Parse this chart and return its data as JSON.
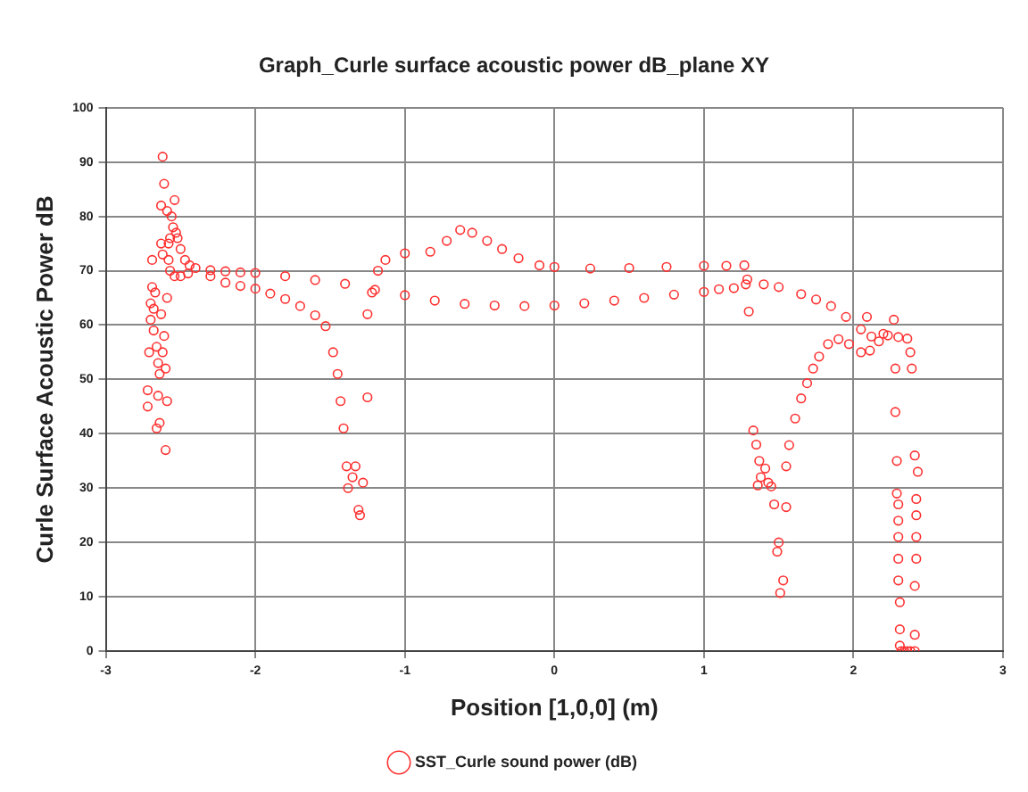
{
  "chart_data": {
    "type": "scatter",
    "title": "Graph_Curle surface acoustic power dB_plane XY",
    "xlabel": "Position [1,0,0] (m)",
    "ylabel": "Curle Surface Acoustic Power dB",
    "xlim": [
      -3,
      3
    ],
    "xticks": [
      -3,
      -2,
      -1,
      0,
      1,
      2,
      3
    ],
    "ylim": [
      0,
      100
    ],
    "yticks": [
      0,
      10,
      20,
      30,
      40,
      50,
      60,
      70,
      80,
      90,
      100
    ],
    "grid": true,
    "legend": "bottom",
    "marker": "circle",
    "series": [
      {
        "name": "SST_Curle sound power (dB)",
        "color": "#ff3030",
        "x": [
          -2.72,
          -2.72,
          -2.71,
          -2.7,
          -2.7,
          -2.69,
          -2.69,
          -2.68,
          -2.68,
          -2.67,
          -2.66,
          -2.66,
          -2.65,
          -2.65,
          -2.64,
          -2.64,
          -2.63,
          -2.63,
          -2.63,
          -2.62,
          -2.62,
          -2.62,
          -2.61,
          -2.61,
          -2.6,
          -2.6,
          -2.59,
          -2.59,
          -2.59,
          -2.58,
          -2.58,
          -2.57,
          -2.56,
          -2.55,
          -2.54,
          -2.53,
          -2.52,
          -2.5,
          -2.47,
          -2.44,
          -2.4,
          -2.57,
          -2.54,
          -2.5,
          -2.45,
          -2.3,
          -2.2,
          -2.1,
          -2.0,
          -1.8,
          -1.6,
          -1.4,
          -1.2,
          -1.0,
          -0.8,
          -0.6,
          -0.4,
          -0.2,
          0.0,
          0.2,
          0.4,
          0.6,
          0.8,
          1.0,
          1.1,
          1.2,
          1.29,
          1.4,
          1.5,
          1.65,
          1.75,
          1.85,
          1.95,
          2.05,
          2.12,
          2.2,
          2.3,
          2.36,
          -2.3,
          -2.2,
          -2.1,
          -2.0,
          -1.9,
          -1.8,
          -1.7,
          -1.6,
          -1.53,
          -1.48,
          -1.45,
          -1.43,
          -1.41,
          -1.39,
          -1.38,
          -1.35,
          -1.33,
          -1.31,
          -1.3,
          -1.28,
          -1.25,
          -1.25,
          -1.22,
          -1.18,
          -1.13,
          -1.0,
          -0.83,
          -0.72,
          -0.63,
          -0.55,
          -0.45,
          -0.35,
          -0.24,
          -0.1,
          0.0,
          0.24,
          0.5,
          0.75,
          1.0,
          1.15,
          1.27,
          1.55,
          1.57,
          1.61,
          1.65,
          1.69,
          1.73,
          1.77,
          1.83,
          1.9,
          1.97,
          2.05,
          2.11,
          2.17,
          2.23,
          1.33,
          1.35,
          1.37,
          1.38,
          1.41,
          1.43,
          1.45,
          1.47,
          1.49,
          1.5,
          1.51,
          1.53,
          1.55,
          1.36,
          1.3,
          1.28,
          2.09,
          2.27,
          2.28,
          2.28,
          2.29,
          2.29,
          2.3,
          2.3,
          2.3,
          2.3,
          2.3,
          2.31,
          2.31,
          2.31,
          2.32,
          2.34,
          2.36,
          2.38,
          2.41,
          2.41,
          2.41,
          2.42,
          2.42,
          2.42,
          2.42,
          2.43,
          2.41,
          2.39,
          2.38
        ],
        "values": [
          48,
          45,
          55,
          64,
          61,
          72,
          67,
          59,
          63,
          66,
          56,
          41,
          53,
          47,
          51,
          42,
          62,
          75,
          82,
          91,
          73,
          55,
          86,
          58,
          52,
          37,
          81,
          65,
          46,
          72,
          75,
          76,
          80,
          78,
          83,
          77,
          76,
          74,
          72,
          71,
          70.5,
          70,
          69,
          69,
          69.5,
          70.1,
          69.9,
          69.7,
          69.6,
          69.0,
          68.3,
          67.6,
          66.5,
          65.5,
          64.5,
          63.9,
          63.6,
          63.5,
          63.6,
          64.0,
          64.5,
          65.0,
          65.6,
          66.1,
          66.6,
          66.8,
          68.4,
          67.5,
          67.0,
          65.7,
          64.7,
          63.5,
          61.5,
          59.2,
          57.9,
          58.4,
          57.8,
          57.5,
          69,
          67.8,
          67.2,
          66.7,
          65.8,
          64.8,
          63.5,
          61.8,
          59.8,
          55,
          51,
          46,
          41,
          34,
          30,
          32,
          34,
          26,
          25,
          31,
          46.7,
          62,
          66,
          70,
          72,
          73.2,
          73.5,
          75.5,
          77.5,
          77,
          75.5,
          74,
          72.3,
          71,
          70.7,
          70.4,
          70.5,
          70.7,
          70.9,
          70.9,
          71,
          34,
          37.9,
          42.8,
          46.5,
          49.3,
          52,
          54.2,
          56.5,
          57.4,
          56.5,
          55,
          55.3,
          57,
          58.1,
          40.6,
          38,
          35,
          32,
          33.6,
          31,
          30.3,
          27,
          18.3,
          20,
          10.7,
          13,
          26.5,
          30.5,
          62.5,
          67.5,
          61.5,
          61,
          52,
          44,
          35,
          29,
          27,
          24,
          21,
          17,
          13,
          9,
          4,
          1,
          0,
          0,
          0,
          0,
          0,
          3,
          12,
          17,
          21,
          25,
          28,
          33,
          36,
          52,
          55
        ]
      }
    ]
  }
}
